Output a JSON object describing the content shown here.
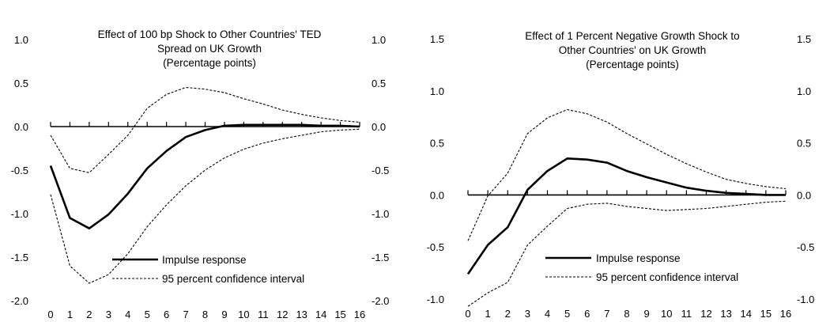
{
  "chart_data": [
    {
      "type": "line",
      "title_lines": [
        "Effect of 100 bp Shock to Other Countries' TED",
        "Spread on UK Growth",
        "(Percentage points)"
      ],
      "x": [
        0,
        1,
        2,
        3,
        4,
        5,
        6,
        7,
        8,
        9,
        10,
        11,
        12,
        13,
        14,
        15,
        16
      ],
      "ylim": [
        -2.0,
        1.0
      ],
      "yticks": [
        "1.0",
        "0.5",
        "0.0",
        "-0.5",
        "-1.0",
        "-1.5",
        "-2.0"
      ],
      "ytick_values": [
        1.0,
        0.5,
        0.0,
        -0.5,
        -1.0,
        -1.5,
        -2.0
      ],
      "secondary_y_axis": true,
      "legend_position": "bottom-right",
      "series": [
        {
          "name": "Impulse response",
          "style": "solid",
          "values": [
            -0.45,
            -1.05,
            -1.17,
            -1.01,
            -0.77,
            -0.48,
            -0.28,
            -0.12,
            -0.04,
            0.01,
            0.02,
            0.02,
            0.02,
            0.02,
            0.01,
            0.01,
            0.0
          ]
        },
        {
          "name": "95 percent confidence interval",
          "style": "dashed",
          "role": "upper",
          "values": [
            -0.1,
            -0.48,
            -0.53,
            -0.32,
            -0.1,
            0.21,
            0.37,
            0.45,
            0.43,
            0.39,
            0.32,
            0.26,
            0.19,
            0.14,
            0.1,
            0.07,
            0.05
          ]
        },
        {
          "name": "95 percent confidence interval",
          "style": "dashed",
          "role": "lower",
          "values": [
            -0.78,
            -1.6,
            -1.8,
            -1.7,
            -1.46,
            -1.15,
            -0.9,
            -0.68,
            -0.5,
            -0.36,
            -0.26,
            -0.19,
            -0.14,
            -0.1,
            -0.06,
            -0.04,
            -0.03
          ]
        }
      ]
    },
    {
      "type": "line",
      "title_lines": [
        "Effect of 1 Percent Negative Growth Shock to",
        "Other Countries' on UK Growth",
        "(Percentage points)"
      ],
      "x": [
        0,
        1,
        2,
        3,
        4,
        5,
        6,
        7,
        8,
        9,
        10,
        11,
        12,
        13,
        14,
        15,
        16
      ],
      "ylim": [
        -1.0,
        1.5
      ],
      "yticks": [
        "1.5",
        "1.0",
        "0.5",
        "0.0",
        "-0.5",
        "-1.0"
      ],
      "ytick_values": [
        1.5,
        1.0,
        0.5,
        0.0,
        -0.5,
        -1.0
      ],
      "secondary_y_axis": true,
      "legend_position": "bottom-right",
      "series": [
        {
          "name": "Impulse response",
          "style": "solid",
          "values": [
            -0.76,
            -0.48,
            -0.31,
            0.05,
            0.23,
            0.35,
            0.34,
            0.31,
            0.23,
            0.17,
            0.12,
            0.07,
            0.04,
            0.02,
            0.01,
            0.0,
            0.0
          ]
        },
        {
          "name": "95 percent confidence interval",
          "style": "dashed",
          "role": "upper",
          "values": [
            -0.44,
            -0.01,
            0.21,
            0.59,
            0.74,
            0.82,
            0.78,
            0.7,
            0.59,
            0.49,
            0.39,
            0.3,
            0.22,
            0.15,
            0.11,
            0.08,
            0.06
          ]
        },
        {
          "name": "95 percent confidence interval",
          "style": "dashed",
          "role": "lower",
          "values": [
            -1.07,
            -0.94,
            -0.84,
            -0.48,
            -0.3,
            -0.13,
            -0.09,
            -0.08,
            -0.11,
            -0.13,
            -0.15,
            -0.14,
            -0.13,
            -0.11,
            -0.09,
            -0.07,
            -0.06
          ]
        }
      ]
    }
  ]
}
